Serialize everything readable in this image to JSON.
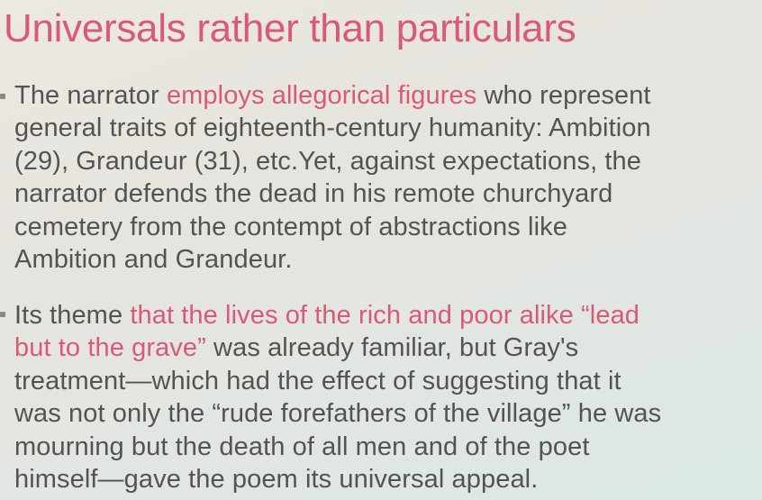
{
  "slide": {
    "title": "Universals rather than particulars",
    "bullets": [
      {
        "lines": [
          [
            {
              "text": "The narrator ",
              "hl": false
            },
            {
              "text": "employs allegorical figures",
              "hl": true
            },
            {
              "text": " who represent",
              "hl": false
            }
          ],
          [
            {
              "text": "general traits of eighteenth-century humanity: Ambition",
              "hl": false
            }
          ],
          [
            {
              "text": "(29), Grandeur (31), etc.Yet, against expectations, the",
              "hl": false
            }
          ],
          [
            {
              "text": "narrator defends the dead in his remote churchyard",
              "hl": false
            }
          ],
          [
            {
              "text": "cemetery from the contempt of abstractions like",
              "hl": false
            }
          ],
          [
            {
              "text": "Ambition and Grandeur.",
              "hl": false
            }
          ]
        ]
      },
      {
        "lines": [
          [
            {
              "text": "Its theme ",
              "hl": false
            },
            {
              "text": "that the lives of the rich and poor alike “lead",
              "hl": true
            }
          ],
          [
            {
              "text": "but to the grave”",
              "hl": true
            },
            {
              "text": " was already familiar, but Gray's",
              "hl": false
            }
          ],
          [
            {
              "text": "treatment—which had the effect of suggesting that it",
              "hl": false
            }
          ],
          [
            {
              "text": "was not only the “rude forefathers of the village” he was",
              "hl": false
            }
          ],
          [
            {
              "text": "mourning but the death of all men and of the poet",
              "hl": false
            }
          ],
          [
            {
              "text": "himself—gave the poem its universal appeal.",
              "hl": false
            }
          ]
        ]
      }
    ]
  },
  "colors": {
    "accent": "#d85a76",
    "body_text": "#555350",
    "background": "#e6e4de"
  }
}
